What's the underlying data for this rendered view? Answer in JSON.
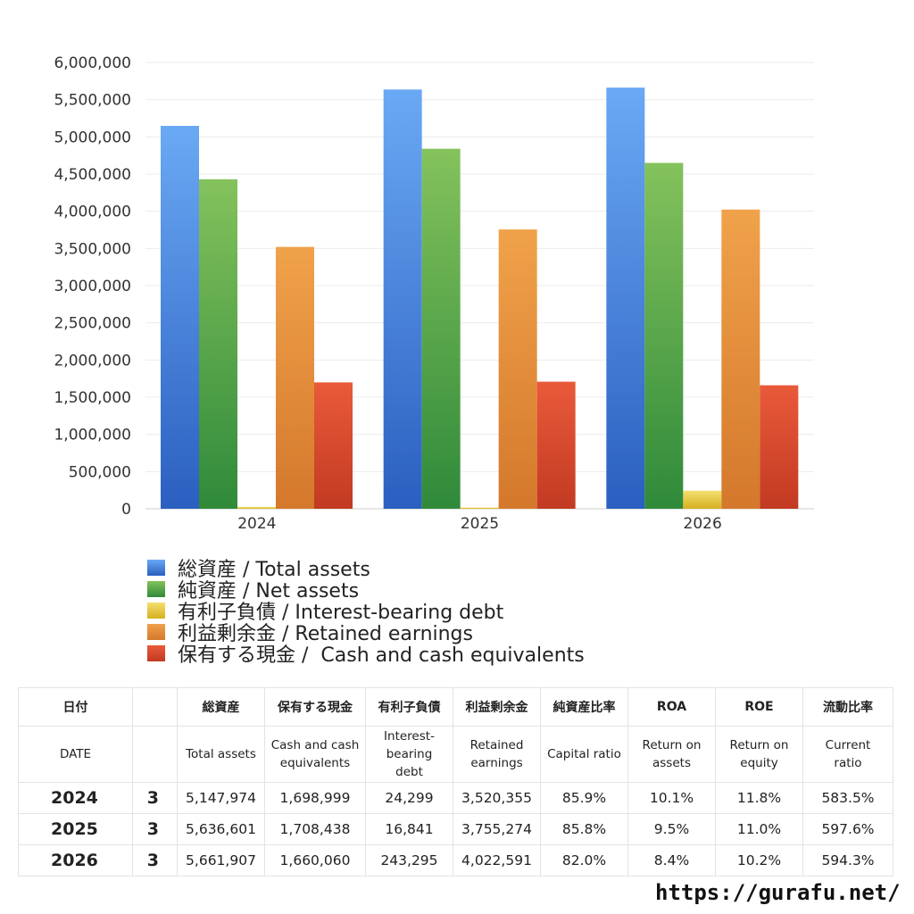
{
  "chart_data": {
    "type": "bar",
    "categories": [
      "2024",
      "2025",
      "2026"
    ],
    "series": [
      {
        "name": "総資産 / Total assets",
        "values": [
          5147974,
          5636601,
          5661907
        ],
        "color_top": "#6aa9f4",
        "color_bottom": "#2b5fc0"
      },
      {
        "name": "純資産 / Net assets",
        "values": [
          4430000,
          4840000,
          4650000
        ],
        "color_top": "#84c25c",
        "color_bottom": "#2f8a3a"
      },
      {
        "name": "有利子負債 / Interest-bearing debt",
        "values": [
          24299,
          16841,
          243295
        ],
        "color_top": "#f3e070",
        "color_bottom": "#d6b020"
      },
      {
        "name": "利益剰余金 / Retained earnings",
        "values": [
          3520355,
          3755274,
          4022591
        ],
        "color_top": "#f0a24a",
        "color_bottom": "#d4782c"
      },
      {
        "name": "保有する現金 /  Cash and cash equivalents",
        "values": [
          1698999,
          1708438,
          1660060
        ],
        "color_top": "#e95a3a",
        "color_bottom": "#c23a22"
      }
    ],
    "ylim": [
      0,
      6000000
    ],
    "yticks": [
      0,
      500000,
      1000000,
      1500000,
      2000000,
      2500000,
      3000000,
      3500000,
      4000000,
      4500000,
      5000000,
      5500000,
      6000000
    ],
    "ytick_labels": [
      "0",
      "500,000",
      "1,000,000",
      "1,500,000",
      "2,000,000",
      "2,500,000",
      "3,000,000",
      "3,500,000",
      "4,000,000",
      "4,500,000",
      "5,000,000",
      "5,500,000",
      "6,000,000"
    ],
    "title": "",
    "xlabel": "",
    "ylabel": "",
    "grid": true,
    "legend_position": "bottom-left"
  },
  "table": {
    "headers_jp": [
      "日付",
      "",
      "総資産",
      "保有する現金",
      "有利子負債",
      "利益剰余金",
      "純資産比率",
      "ROA",
      "ROE",
      "流動比率"
    ],
    "headers_en": [
      "DATE",
      "",
      "Total assets",
      "Cash and cash\nequivalents",
      "Interest-\nbearing\ndebt",
      "Retained\nearnings",
      "Capital ratio",
      "Return on\nassets",
      "Return on\nequity",
      "Current\nratio"
    ],
    "rows": [
      [
        "2024",
        "3",
        "5,147,974",
        "1,698,999",
        "24,299",
        "3,520,355",
        "85.9%",
        "10.1%",
        "11.8%",
        "583.5%"
      ],
      [
        "2025",
        "3",
        "5,636,601",
        "1,708,438",
        "16,841",
        "3,755,274",
        "85.8%",
        "9.5%",
        "11.0%",
        "597.6%"
      ],
      [
        "2026",
        "3",
        "5,661,907",
        "1,660,060",
        "243,295",
        "4,022,591",
        "82.0%",
        "8.4%",
        "10.2%",
        "594.3%"
      ]
    ]
  },
  "source_url": "https://gurafu.net/"
}
